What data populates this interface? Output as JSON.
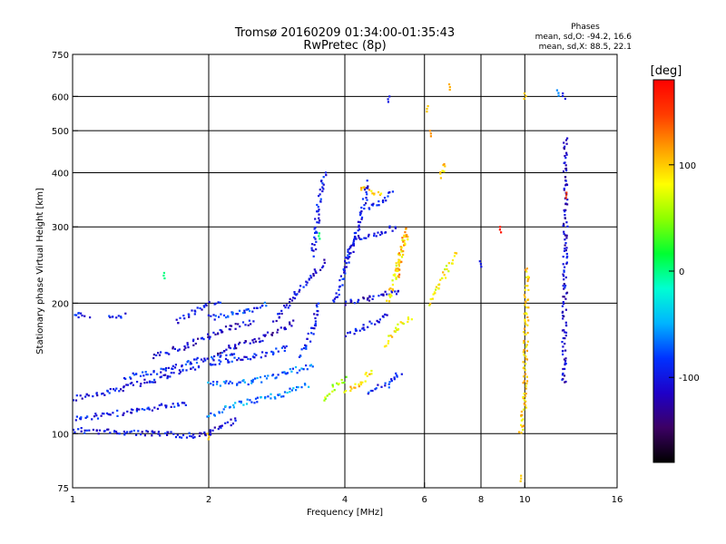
{
  "chart_data": {
    "type": "scatter",
    "title": "Tromsø 20160209 01:34:00-01:35:43",
    "subtitle": "RwPretec (8p)",
    "xlabel": "Frequency [MHz]",
    "ylabel": "Stationary phase Virtual Height [km]",
    "x_scale": "log",
    "y_scale": "log",
    "xlim": [
      1,
      16
    ],
    "ylim": [
      75,
      750
    ],
    "x_ticks": [
      1,
      2,
      4,
      6,
      8,
      10,
      16
    ],
    "x_tick_labels": [
      "1",
      "2",
      "4",
      "6",
      "8",
      "10",
      "16"
    ],
    "y_ticks": [
      75,
      100,
      200,
      300,
      400,
      500,
      600,
      750
    ],
    "y_tick_labels": [
      "75",
      "100",
      "200",
      "300",
      "400",
      "500",
      "600",
      "750"
    ],
    "grid": true,
    "phase_info": {
      "title": "Phases",
      "line_o": "mean, sd,O: -94.2, 16.6",
      "line_x": "mean, sd,X:  88.5, 22.1"
    },
    "colorbar": {
      "label": "[deg]",
      "range": [
        -180,
        180
      ],
      "tick_values": [
        100,
        0,
        -100
      ],
      "tick_labels": [
        "100",
        "0",
        "-100"
      ],
      "colors": [
        "#000000",
        "#3c0064",
        "#1e00c8",
        "#0032ff",
        "#00b4ff",
        "#00ffd2",
        "#00ff32",
        "#8cff00",
        "#ffff00",
        "#ffa000",
        "#ff3c00",
        "#ff0000"
      ]
    },
    "traces": [
      {
        "x": [
          1.0,
          1.5
        ],
        "y": [
          102,
          100
        ],
        "phase": -100
      },
      {
        "x": [
          1.5,
          1.85
        ],
        "y": [
          100,
          99
        ],
        "phase": -100
      },
      {
        "x": [
          1.85,
          2.0,
          2.3
        ],
        "y": [
          99,
          100,
          108
        ],
        "phase": -105
      },
      {
        "x": [
          1.0,
          1.4,
          1.8
        ],
        "y": [
          108,
          113,
          118
        ],
        "phase": -95
      },
      {
        "x": [
          1.0,
          1.2,
          1.5,
          1.9
        ],
        "y": [
          120,
          125,
          133,
          142
        ],
        "phase": -100
      },
      {
        "x": [
          1.3,
          1.6,
          1.9,
          2.3
        ],
        "y": [
          135,
          140,
          148,
          155
        ],
        "phase": -90
      },
      {
        "x": [
          1.5,
          1.8,
          2.1,
          2.5
        ],
        "y": [
          150,
          160,
          172,
          182
        ],
        "phase": -110
      },
      {
        "x": [
          1.7,
          1.9,
          2.1
        ],
        "y": [
          180,
          195,
          202
        ],
        "phase": -100
      },
      {
        "x": [
          2.0,
          2.4,
          2.9,
          3.3
        ],
        "y": [
          110,
          118,
          123,
          130
        ],
        "phase": -60
      },
      {
        "x": [
          2.0,
          2.5,
          3.0,
          3.4
        ],
        "y": [
          130,
          132,
          138,
          145
        ],
        "phase": -70
      },
      {
        "x": [
          2.0,
          2.5,
          3.0
        ],
        "y": [
          145,
          150,
          158
        ],
        "phase": -95
      },
      {
        "x": [
          2.1,
          2.6,
          3.1
        ],
        "y": [
          155,
          165,
          180
        ],
        "phase": -120
      },
      {
        "x": [
          2.0,
          2.4,
          2.7
        ],
        "y": [
          185,
          190,
          200
        ],
        "phase": -85
      },
      {
        "x": [
          2.8,
          3.0,
          3.3,
          3.6
        ],
        "y": [
          180,
          200,
          225,
          250
        ],
        "phase": -105
      },
      {
        "x": [
          3.2,
          3.4,
          3.5
        ],
        "y": [
          150,
          175,
          200
        ],
        "phase": -95
      },
      {
        "x": [
          3.4,
          3.5,
          3.6
        ],
        "y": [
          260,
          330,
          400
        ],
        "phase": -100
      },
      {
        "x": [
          3.6,
          3.8,
          4.0
        ],
        "y": [
          120,
          128,
          135
        ],
        "phase": 60
      },
      {
        "x": [
          4.0,
          4.3,
          4.6
        ],
        "y": [
          125,
          130,
          140
        ],
        "phase": 95
      },
      {
        "x": [
          4.0,
          4.4,
          4.7,
          5.0
        ],
        "y": [
          170,
          175,
          182,
          190
        ],
        "phase": -100
      },
      {
        "x": [
          4.0,
          4.5,
          5.0,
          5.3
        ],
        "y": [
          200,
          205,
          210,
          215
        ],
        "phase": -110
      },
      {
        "x": [
          4.2,
          4.7,
          5.2
        ],
        "y": [
          280,
          290,
          300
        ],
        "phase": -100
      },
      {
        "x": [
          4.5,
          4.8,
          5.1
        ],
        "y": [
          330,
          340,
          360
        ],
        "phase": -90
      },
      {
        "x": [
          4.0,
          4.3,
          4.5
        ],
        "y": [
          250,
          300,
          380
        ],
        "phase": -105
      },
      {
        "x": [
          3.8,
          4.0,
          4.2
        ],
        "y": [
          200,
          240,
          280
        ],
        "phase": -95
      },
      {
        "x": [
          5.0,
          5.2,
          5.5
        ],
        "y": [
          200,
          240,
          290
        ],
        "phase": 90
      },
      {
        "x": [
          5.2,
          5.5
        ],
        "y": [
          230,
          300
        ],
        "phase": 110
      },
      {
        "x": [
          4.9,
          5.2,
          5.6
        ],
        "y": [
          160,
          175,
          185
        ],
        "phase": 85
      },
      {
        "x": [
          6.2,
          6.6,
          7.0
        ],
        "y": [
          200,
          230,
          260
        ],
        "phase": 85
      },
      {
        "x": [
          4.5,
          5.0,
          5.3
        ],
        "y": [
          125,
          130,
          138
        ],
        "phase": -95
      },
      {
        "x": [
          1.0,
          1.08
        ],
        "y": [
          188,
          188
        ],
        "phase": -100
      },
      {
        "x": [
          1.2
        ],
        "y": [
          187
        ],
        "phase": -100
      },
      {
        "x": [
          4.3,
          4.8
        ],
        "y": [
          370,
          355
        ],
        "phase": 100
      },
      {
        "x": [
          6.5,
          6.7
        ],
        "y": [
          390,
          420
        ],
        "phase": 100
      },
      {
        "x": [
          9.8,
          10.0,
          10.1
        ],
        "y": [
          100,
          120,
          240
        ],
        "phase": 95
      },
      {
        "x": [
          12.2,
          12.3,
          12.3
        ],
        "y": [
          130,
          280,
          480
        ],
        "phase": -110
      }
    ],
    "scattered_points": [
      {
        "x": 1.6,
        "y": 235,
        "phase": 0
      },
      {
        "x": 2.0,
        "y": 100,
        "phase": 100
      },
      {
        "x": 3.5,
        "y": 290,
        "phase": 5
      },
      {
        "x": 5.0,
        "y": 600,
        "phase": -100
      },
      {
        "x": 6.1,
        "y": 570,
        "phase": 100
      },
      {
        "x": 6.8,
        "y": 640,
        "phase": 110
      },
      {
        "x": 8.0,
        "y": 250,
        "phase": -100
      },
      {
        "x": 8.8,
        "y": 300,
        "phase": 170
      },
      {
        "x": 9.8,
        "y": 80,
        "phase": 100
      },
      {
        "x": 10.0,
        "y": 610,
        "phase": 100
      },
      {
        "x": 11.8,
        "y": 620,
        "phase": -60
      },
      {
        "x": 12.2,
        "y": 610,
        "phase": -100
      },
      {
        "x": 12.3,
        "y": 360,
        "phase": 150
      },
      {
        "x": 6.2,
        "y": 500,
        "phase": 120
      }
    ]
  }
}
